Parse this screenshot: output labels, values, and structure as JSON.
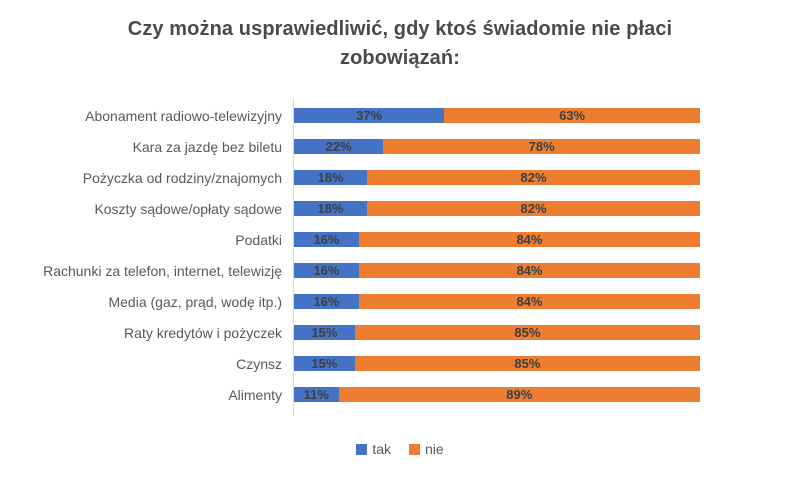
{
  "title": "Czy można usprawiedliwić, gdy ktoś świadomie nie płaci zobowiązań:",
  "chart_data": {
    "type": "bar",
    "subtype": "horizontal-stacked-100-percent",
    "title": "Czy można usprawiedliwić, gdy ktoś świadomie nie płaci zobowiązań:",
    "categories": [
      "Abonament radiowo-telewizyjny",
      "Kara za jazdę bez biletu",
      "Pożyczka od rodziny/znajomych",
      "Koszty sądowe/opłaty sądowe",
      "Podatki",
      "Rachunki za telefon, internet, telewizję",
      "Media (gaz, prąd, wodę itp.)",
      "Raty kredytów i pożyczek",
      "Czynsz",
      "Alimenty"
    ],
    "series": [
      {
        "name": "tak",
        "color": "#4472C4",
        "values": [
          37,
          22,
          18,
          18,
          16,
          16,
          16,
          15,
          15,
          11
        ]
      },
      {
        "name": "nie",
        "color": "#ED7D31",
        "values": [
          63,
          78,
          82,
          82,
          84,
          84,
          84,
          85,
          85,
          89
        ]
      }
    ],
    "value_label_format": "{value}%",
    "value_labels_position": "inside-center",
    "xlim": [
      0,
      100
    ],
    "grid": false,
    "x_axis_labels": false,
    "legend_position": "bottom-center"
  },
  "colors": {
    "series_tak": "#4472C4",
    "series_nie": "#ED7D31",
    "title_text": "#4a4a4a",
    "category_text": "#595959",
    "value_label_text": "#3f3f3f",
    "axis_line": "#d6d6d6",
    "background": "#ffffff"
  }
}
